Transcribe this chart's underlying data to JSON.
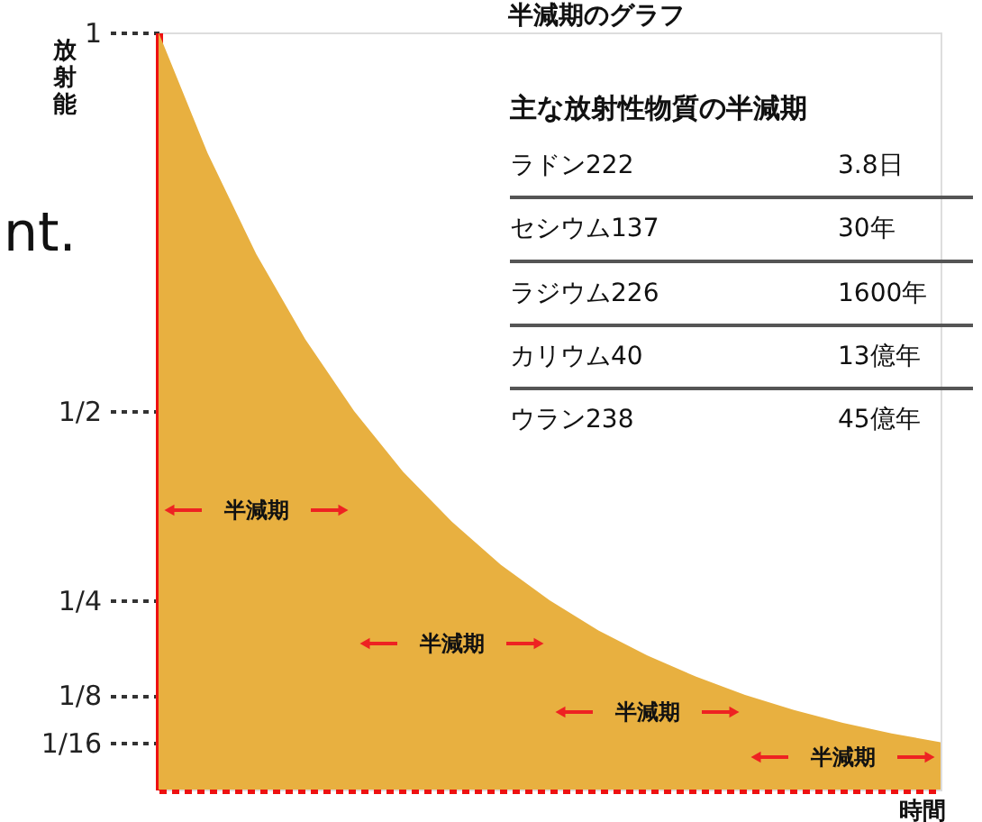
{
  "chart_data": {
    "type": "area",
    "title": "半減期のグラフ",
    "ylabel": "放射能",
    "xlabel": "時間",
    "categories": [
      null,
      null,
      null,
      null,
      null,
      null,
      null,
      null,
      null,
      null,
      null,
      null,
      null,
      null,
      null,
      null,
      null
    ],
    "series": [
      {
        "color": "#e8b040",
        "values": [
          1,
          0.841,
          0.707,
          0.595,
          0.5,
          0.42,
          0.354,
          0.297,
          0.25,
          0.21,
          0.177,
          0.149,
          0.125,
          0.105,
          0.088,
          0.074,
          0.0625
        ]
      }
    ],
    "ylim": [
      0,
      1
    ],
    "yticks": [
      {
        "value": 1,
        "label": "1"
      },
      {
        "value": 0.5,
        "label": "1/2"
      },
      {
        "value": 0.25,
        "label": "1/4"
      },
      {
        "value": 0.125,
        "label": "1/8"
      },
      {
        "value": 0.0625,
        "label": "1/16"
      }
    ],
    "tick_labels": "y",
    "grid": false,
    "annotations": [
      "nt.",
      "主な放射性物質の半減期",
      "ラドン222",
      "3.8日",
      "セシウム137",
      "30年",
      "ラジウム226",
      "1600年",
      "カリウム40",
      "13億年",
      "ウラン238",
      "45億年",
      "半減期",
      "半減期",
      "半減期",
      "半減期"
    ]
  }
}
